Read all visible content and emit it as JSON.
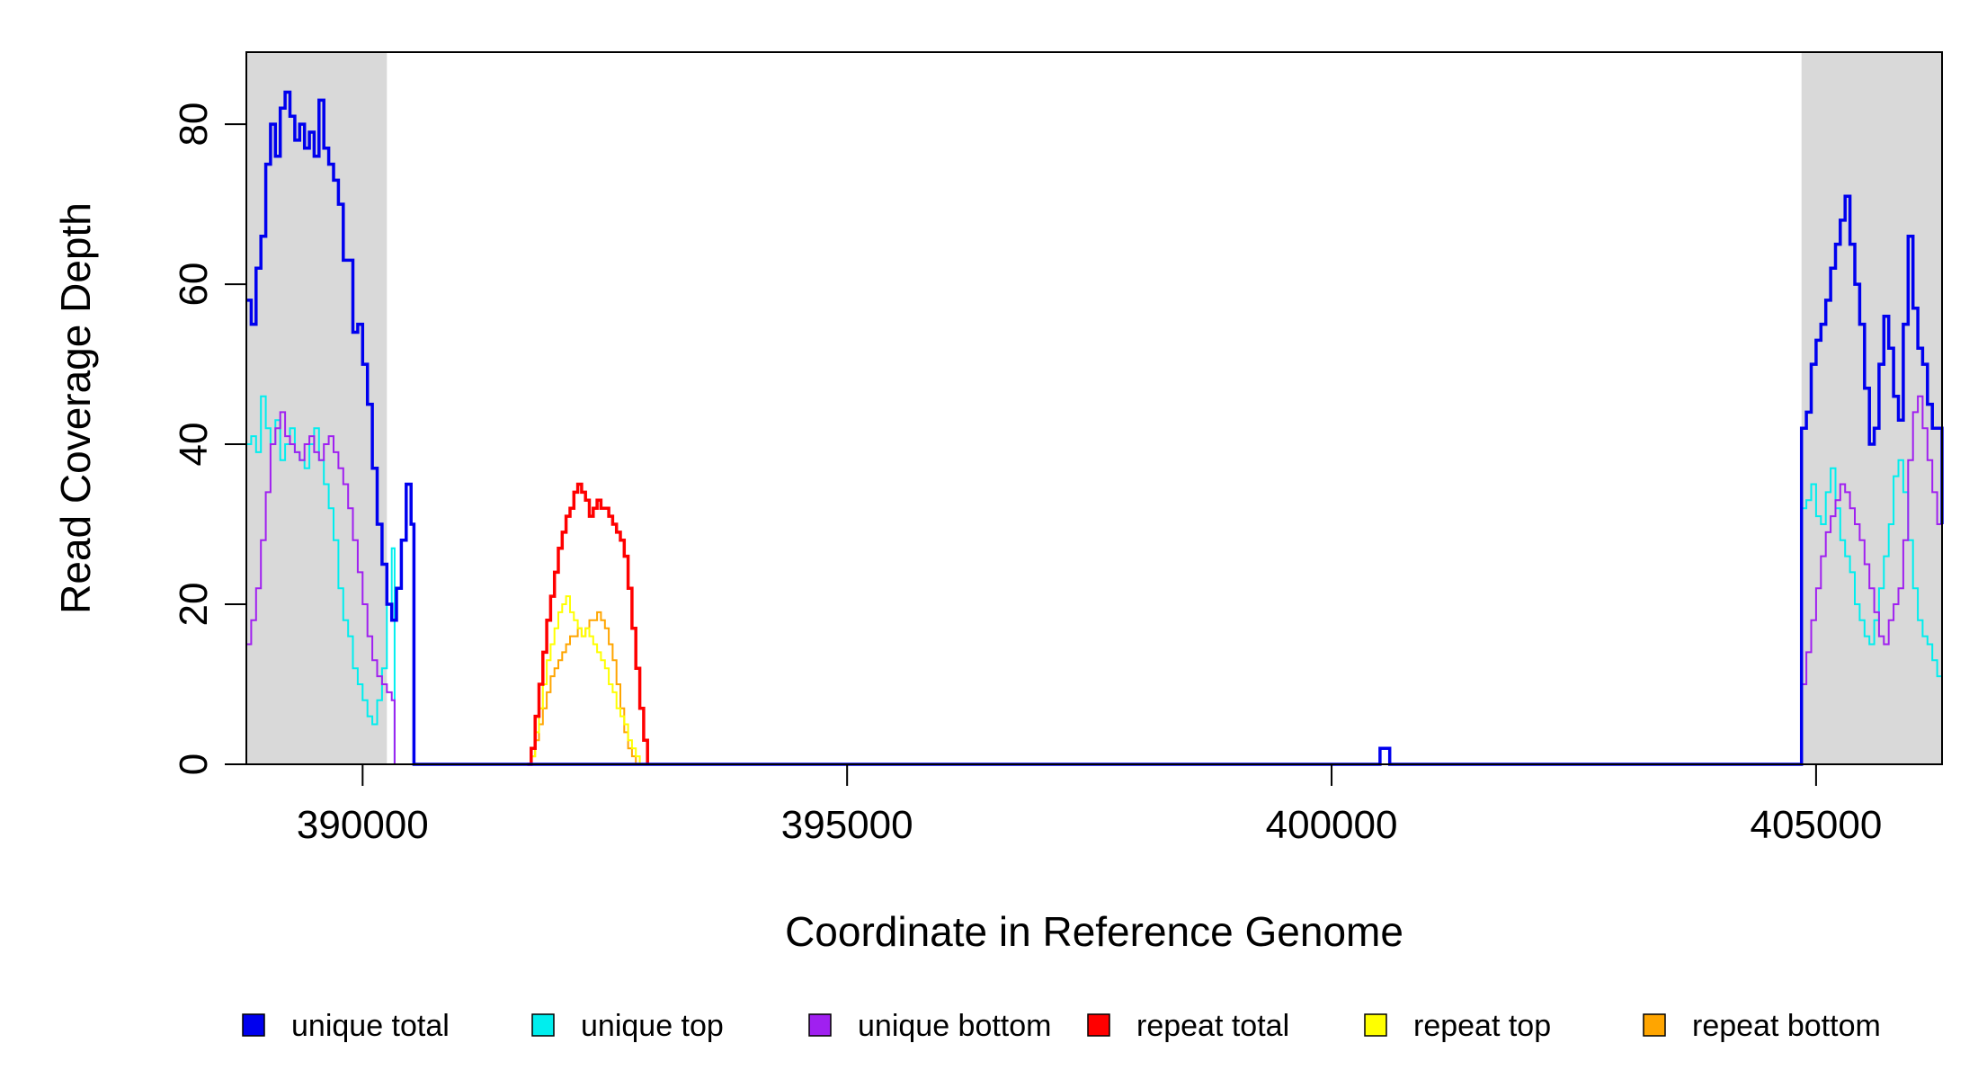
{
  "chart_data": {
    "type": "line",
    "title": "",
    "xlabel": "Coordinate in Reference Genome",
    "ylabel": "Read Coverage Depth",
    "xlim": [
      388800,
      406300
    ],
    "ylim": [
      0,
      89
    ],
    "x_ticks": [
      390000,
      395000,
      400000,
      405000
    ],
    "x_tick_labels": [
      "390000",
      "395000",
      "400000",
      "405000"
    ],
    "y_ticks": [
      0,
      20,
      40,
      60,
      80
    ],
    "y_tick_labels": [
      "0",
      "20",
      "40",
      "60",
      "80"
    ],
    "grid": false,
    "legend_position": "bottom",
    "shaded_regions": [
      {
        "x0": 388800,
        "x1": 390250,
        "color": "#d9d9d9"
      },
      {
        "x0": 404850,
        "x1": 406300,
        "color": "#d9d9d9"
      }
    ],
    "series": [
      {
        "name": "unique total",
        "color": "#0000ee",
        "points": [
          [
            388800,
            58
          ],
          [
            388850,
            55
          ],
          [
            388900,
            62
          ],
          [
            388950,
            66
          ],
          [
            389000,
            75
          ],
          [
            389050,
            80
          ],
          [
            389100,
            76
          ],
          [
            389150,
            82
          ],
          [
            389200,
            84
          ],
          [
            389250,
            81
          ],
          [
            389300,
            78
          ],
          [
            389350,
            80
          ],
          [
            389400,
            77
          ],
          [
            389450,
            79
          ],
          [
            389500,
            76
          ],
          [
            389550,
            83
          ],
          [
            389600,
            77
          ],
          [
            389650,
            75
          ],
          [
            389700,
            73
          ],
          [
            389750,
            70
          ],
          [
            389800,
            63
          ],
          [
            389850,
            63
          ],
          [
            389900,
            54
          ],
          [
            389950,
            55
          ],
          [
            390000,
            50
          ],
          [
            390050,
            45
          ],
          [
            390100,
            37
          ],
          [
            390150,
            30
          ],
          [
            390200,
            25
          ],
          [
            390250,
            20
          ],
          [
            390300,
            18
          ],
          [
            390350,
            22
          ],
          [
            390400,
            28
          ],
          [
            390450,
            35
          ],
          [
            390500,
            30
          ],
          [
            390530,
            0
          ],
          [
            400500,
            0
          ],
          [
            400500,
            2
          ],
          [
            400600,
            2
          ],
          [
            400600,
            0
          ],
          [
            404850,
            0
          ],
          [
            404850,
            42
          ],
          [
            404900,
            44
          ],
          [
            404950,
            50
          ],
          [
            405000,
            53
          ],
          [
            405050,
            55
          ],
          [
            405100,
            58
          ],
          [
            405150,
            62
          ],
          [
            405200,
            65
          ],
          [
            405250,
            68
          ],
          [
            405300,
            71
          ],
          [
            405350,
            65
          ],
          [
            405400,
            60
          ],
          [
            405450,
            55
          ],
          [
            405500,
            47
          ],
          [
            405550,
            40
          ],
          [
            405600,
            42
          ],
          [
            405650,
            50
          ],
          [
            405700,
            56
          ],
          [
            405750,
            52
          ],
          [
            405800,
            46
          ],
          [
            405850,
            43
          ],
          [
            405900,
            55
          ],
          [
            405950,
            66
          ],
          [
            406000,
            57
          ],
          [
            406050,
            52
          ],
          [
            406100,
            50
          ],
          [
            406150,
            45
          ],
          [
            406200,
            42
          ],
          [
            406300,
            30
          ]
        ]
      },
      {
        "name": "unique top",
        "color": "#00eeee",
        "points": [
          [
            388800,
            40
          ],
          [
            388850,
            41
          ],
          [
            388900,
            39
          ],
          [
            388950,
            46
          ],
          [
            389000,
            42
          ],
          [
            389050,
            40
          ],
          [
            389100,
            43
          ],
          [
            389150,
            38
          ],
          [
            389200,
            40
          ],
          [
            389250,
            42
          ],
          [
            389300,
            39
          ],
          [
            389350,
            38
          ],
          [
            389400,
            37
          ],
          [
            389450,
            40
          ],
          [
            389500,
            42
          ],
          [
            389550,
            38
          ],
          [
            389600,
            35
          ],
          [
            389650,
            32
          ],
          [
            389700,
            28
          ],
          [
            389750,
            22
          ],
          [
            389800,
            18
          ],
          [
            389850,
            16
          ],
          [
            389900,
            12
          ],
          [
            389950,
            10
          ],
          [
            390000,
            8
          ],
          [
            390050,
            6
          ],
          [
            390100,
            5
          ],
          [
            390150,
            8
          ],
          [
            390200,
            12
          ],
          [
            390250,
            20
          ],
          [
            390300,
            27
          ],
          [
            390330,
            0
          ],
          [
            404850,
            0
          ],
          [
            404850,
            32
          ],
          [
            404900,
            33
          ],
          [
            404950,
            35
          ],
          [
            405000,
            31
          ],
          [
            405050,
            30
          ],
          [
            405100,
            34
          ],
          [
            405150,
            37
          ],
          [
            405200,
            32
          ],
          [
            405250,
            28
          ],
          [
            405300,
            26
          ],
          [
            405350,
            24
          ],
          [
            405400,
            20
          ],
          [
            405450,
            18
          ],
          [
            405500,
            16
          ],
          [
            405550,
            15
          ],
          [
            405600,
            18
          ],
          [
            405650,
            22
          ],
          [
            405700,
            26
          ],
          [
            405750,
            30
          ],
          [
            405800,
            36
          ],
          [
            405850,
            38
          ],
          [
            405900,
            34
          ],
          [
            405950,
            28
          ],
          [
            406000,
            22
          ],
          [
            406050,
            18
          ],
          [
            406100,
            16
          ],
          [
            406150,
            15
          ],
          [
            406200,
            13
          ],
          [
            406250,
            11
          ],
          [
            406300,
            10
          ]
        ]
      },
      {
        "name": "unique bottom",
        "color": "#a020f0",
        "points": [
          [
            388800,
            15
          ],
          [
            388850,
            18
          ],
          [
            388900,
            22
          ],
          [
            388950,
            28
          ],
          [
            389000,
            34
          ],
          [
            389050,
            40
          ],
          [
            389100,
            42
          ],
          [
            389150,
            44
          ],
          [
            389200,
            41
          ],
          [
            389250,
            40
          ],
          [
            389300,
            39
          ],
          [
            389350,
            38
          ],
          [
            389400,
            40
          ],
          [
            389450,
            41
          ],
          [
            389500,
            39
          ],
          [
            389550,
            38
          ],
          [
            389600,
            40
          ],
          [
            389650,
            41
          ],
          [
            389700,
            39
          ],
          [
            389750,
            37
          ],
          [
            389800,
            35
          ],
          [
            389850,
            32
          ],
          [
            389900,
            28
          ],
          [
            389950,
            24
          ],
          [
            390000,
            20
          ],
          [
            390050,
            16
          ],
          [
            390100,
            13
          ],
          [
            390150,
            11
          ],
          [
            390200,
            10
          ],
          [
            390250,
            9
          ],
          [
            390300,
            8
          ],
          [
            390330,
            0
          ],
          [
            404850,
            0
          ],
          [
            404850,
            10
          ],
          [
            404900,
            14
          ],
          [
            404950,
            18
          ],
          [
            405000,
            22
          ],
          [
            405050,
            26
          ],
          [
            405100,
            29
          ],
          [
            405150,
            31
          ],
          [
            405200,
            33
          ],
          [
            405250,
            35
          ],
          [
            405300,
            34
          ],
          [
            405350,
            32
          ],
          [
            405400,
            30
          ],
          [
            405450,
            28
          ],
          [
            405500,
            25
          ],
          [
            405550,
            22
          ],
          [
            405600,
            19
          ],
          [
            405650,
            16
          ],
          [
            405700,
            15
          ],
          [
            405750,
            18
          ],
          [
            405800,
            20
          ],
          [
            405850,
            22
          ],
          [
            405900,
            28
          ],
          [
            405950,
            38
          ],
          [
            406000,
            44
          ],
          [
            406050,
            46
          ],
          [
            406100,
            42
          ],
          [
            406150,
            38
          ],
          [
            406200,
            34
          ],
          [
            406250,
            30
          ],
          [
            406300,
            20
          ]
        ]
      },
      {
        "name": "repeat total",
        "color": "#ff0000",
        "points": [
          [
            391700,
            0
          ],
          [
            391740,
            2
          ],
          [
            391780,
            6
          ],
          [
            391820,
            10
          ],
          [
            391860,
            14
          ],
          [
            391900,
            18
          ],
          [
            391940,
            21
          ],
          [
            391980,
            24
          ],
          [
            392020,
            27
          ],
          [
            392060,
            29
          ],
          [
            392100,
            31
          ],
          [
            392140,
            32
          ],
          [
            392180,
            34
          ],
          [
            392220,
            35
          ],
          [
            392260,
            34
          ],
          [
            392300,
            33
          ],
          [
            392340,
            31
          ],
          [
            392380,
            32
          ],
          [
            392420,
            33
          ],
          [
            392460,
            32
          ],
          [
            392500,
            32
          ],
          [
            392540,
            31
          ],
          [
            392580,
            30
          ],
          [
            392620,
            29
          ],
          [
            392660,
            28
          ],
          [
            392700,
            26
          ],
          [
            392740,
            22
          ],
          [
            392780,
            17
          ],
          [
            392820,
            12
          ],
          [
            392860,
            7
          ],
          [
            392900,
            3
          ],
          [
            392940,
            0
          ]
        ]
      },
      {
        "name": "repeat top",
        "color": "#ffff00",
        "points": [
          [
            391700,
            0
          ],
          [
            391740,
            1
          ],
          [
            391780,
            4
          ],
          [
            391820,
            7
          ],
          [
            391860,
            10
          ],
          [
            391900,
            13
          ],
          [
            391940,
            15
          ],
          [
            391980,
            17
          ],
          [
            392020,
            19
          ],
          [
            392060,
            20
          ],
          [
            392100,
            21
          ],
          [
            392140,
            19
          ],
          [
            392180,
            18
          ],
          [
            392220,
            17
          ],
          [
            392260,
            16
          ],
          [
            392300,
            17
          ],
          [
            392340,
            16
          ],
          [
            392380,
            15
          ],
          [
            392420,
            14
          ],
          [
            392460,
            13
          ],
          [
            392500,
            12
          ],
          [
            392540,
            10
          ],
          [
            392580,
            9
          ],
          [
            392620,
            7
          ],
          [
            392660,
            6
          ],
          [
            392700,
            5
          ],
          [
            392740,
            3
          ],
          [
            392780,
            2
          ],
          [
            392820,
            1
          ],
          [
            392860,
            0
          ]
        ]
      },
      {
        "name": "repeat bottom",
        "color": "#ffa500",
        "points": [
          [
            391700,
            0
          ],
          [
            391740,
            1
          ],
          [
            391780,
            3
          ],
          [
            391820,
            5
          ],
          [
            391860,
            7
          ],
          [
            391900,
            9
          ],
          [
            391940,
            11
          ],
          [
            391980,
            12
          ],
          [
            392020,
            13
          ],
          [
            392060,
            14
          ],
          [
            392100,
            15
          ],
          [
            392140,
            16
          ],
          [
            392180,
            16
          ],
          [
            392220,
            17
          ],
          [
            392260,
            16
          ],
          [
            392300,
            17
          ],
          [
            392340,
            18
          ],
          [
            392380,
            18
          ],
          [
            392420,
            19
          ],
          [
            392460,
            18
          ],
          [
            392500,
            17
          ],
          [
            392540,
            15
          ],
          [
            392580,
            13
          ],
          [
            392620,
            10
          ],
          [
            392660,
            7
          ],
          [
            392700,
            4
          ],
          [
            392740,
            2
          ],
          [
            392780,
            1
          ],
          [
            392820,
            0
          ]
        ]
      }
    ]
  }
}
